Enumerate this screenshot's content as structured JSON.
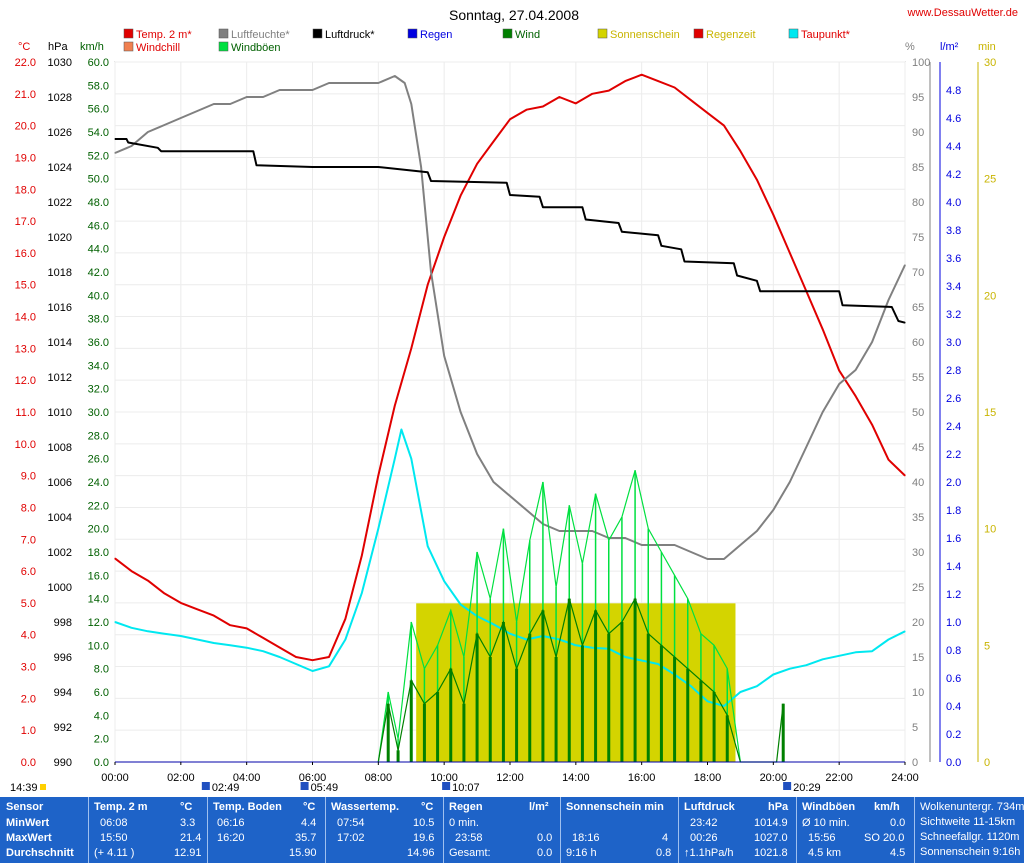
{
  "title": "Sonntag, 27.04.2008",
  "site": "www.DessauWetter.de",
  "legend": [
    {
      "label": "Temp. 2 m*",
      "color": "#e00000",
      "text_color": "#e00000"
    },
    {
      "label": "Windchill",
      "color": "#f08050",
      "text_color": "#e00000"
    },
    {
      "label": "Luftfeuchte*",
      "color": "#808080",
      "text_color": "#808080"
    },
    {
      "label": "Windböen",
      "color": "#00e040",
      "text_color": "#006000"
    },
    {
      "label": "Luftdruck*",
      "color": "#000000",
      "text_color": "#000000"
    },
    {
      "label": "Regen",
      "color": "#0000e0",
      "text_color": "#0000e0"
    },
    {
      "label": "Wind",
      "color": "#008000",
      "text_color": "#006000"
    },
    {
      "label": "Sonnenschein",
      "color": "#d4d400",
      "text_color": "#c8b400"
    },
    {
      "label": "Regenzeit",
      "color": "#e00000",
      "text_color": "#c8b400"
    },
    {
      "label": "Taupunkt*",
      "color": "#00e8f0",
      "text_color": "#e00000"
    }
  ],
  "axis_units": {
    "temp": "°C",
    "pressure": "hPa",
    "wind": "km/h",
    "humidity": "%",
    "rain": "l/m²",
    "sun": "min"
  },
  "chart_data": {
    "type": "line",
    "x_unit": "time of day (h)",
    "xlim": [
      0,
      24
    ],
    "x_tick_labels": [
      "00:00",
      "02:00",
      "04:00",
      "06:00",
      "08:00",
      "10:00",
      "12:00",
      "14:00",
      "16:00",
      "18:00",
      "20:00",
      "22:00",
      "24:00"
    ],
    "y_axes": {
      "temp": {
        "min": 0,
        "max": 22,
        "ticks": [
          "0.0",
          "1.0",
          "2.0",
          "3.0",
          "4.0",
          "5.0",
          "6.0",
          "7.0",
          "8.0",
          "9.0",
          "10.0",
          "11.0",
          "12.0",
          "13.0",
          "14.0",
          "15.0",
          "16.0",
          "17.0",
          "18.0",
          "19.0",
          "20.0",
          "21.0",
          "22.0"
        ]
      },
      "pressure": {
        "min": 990,
        "max": 1030,
        "ticks": [
          "990",
          "992",
          "994",
          "996",
          "998",
          "1000",
          "1002",
          "1004",
          "1006",
          "1008",
          "1010",
          "1012",
          "1014",
          "1016",
          "1018",
          "1020",
          "1022",
          "1024",
          "1026",
          "1028",
          "1030"
        ]
      },
      "wind": {
        "min": 0,
        "max": 60,
        "ticks": [
          "0.0",
          "2.0",
          "4.0",
          "6.0",
          "8.0",
          "10.0",
          "12.0",
          "14.0",
          "16.0",
          "18.0",
          "20.0",
          "22.0",
          "24.0",
          "26.0",
          "28.0",
          "30.0",
          "32.0",
          "34.0",
          "36.0",
          "38.0",
          "40.0",
          "42.0",
          "44.0",
          "46.0",
          "48.0",
          "50.0",
          "52.0",
          "54.0",
          "56.0",
          "58.0",
          "60.0"
        ]
      },
      "humidity": {
        "min": 0,
        "max": 100,
        "ticks": [
          "0",
          "5",
          "10",
          "15",
          "20",
          "25",
          "30",
          "35",
          "40",
          "45",
          "50",
          "55",
          "60",
          "65",
          "70",
          "75",
          "80",
          "85",
          "90",
          "95",
          "100"
        ]
      },
      "rain": {
        "min": 0,
        "max": 5,
        "ticks": [
          "0.0",
          "0.2",
          "0.4",
          "0.6",
          "0.8",
          "1.0",
          "1.2",
          "1.4",
          "1.6",
          "1.8",
          "2.0",
          "2.2",
          "2.4",
          "2.6",
          "2.8",
          "3.0",
          "3.2",
          "3.4",
          "3.6",
          "3.8",
          "4.0",
          "4.2",
          "4.4",
          "4.6",
          "4.8"
        ]
      },
      "sun": {
        "min": 0,
        "max": 30,
        "ticks": [
          "0",
          "5",
          "10",
          "15",
          "20",
          "25",
          "30"
        ]
      }
    },
    "series": [
      {
        "name": "Temp. 2 m*",
        "axis": "temp",
        "color": "#e00000",
        "x": [
          0,
          0.5,
          1,
          1.5,
          2,
          2.5,
          3,
          3.5,
          4,
          4.5,
          5,
          5.5,
          6,
          6.5,
          7,
          7.5,
          8,
          8.5,
          9,
          9.5,
          10,
          10.5,
          11,
          11.5,
          12,
          12.5,
          13,
          13.5,
          14,
          14.5,
          15,
          15.5,
          16,
          16.5,
          17,
          17.5,
          18,
          18.5,
          19,
          19.5,
          20,
          20.5,
          21,
          21.5,
          22,
          22.5,
          23,
          23.5,
          24
        ],
        "y": [
          6.4,
          6.0,
          5.7,
          5.3,
          5.0,
          4.8,
          4.6,
          4.3,
          4.2,
          3.9,
          3.6,
          3.3,
          3.2,
          3.3,
          4.5,
          6.5,
          9.0,
          11.2,
          13.0,
          15.0,
          16.5,
          17.8,
          18.8,
          19.5,
          20.2,
          20.5,
          20.6,
          20.9,
          20.7,
          21.0,
          21.1,
          21.4,
          21.6,
          21.4,
          21.2,
          20.8,
          20.4,
          20.0,
          19.2,
          18.3,
          17.2,
          16.0,
          14.8,
          13.6,
          12.3,
          11.5,
          10.6,
          9.5,
          9.0
        ]
      },
      {
        "name": "Luftfeuchte*",
        "axis": "humidity",
        "color": "#808080",
        "x": [
          0,
          0.5,
          1,
          1.5,
          2,
          2.5,
          3,
          3.5,
          4,
          4.5,
          5,
          5.5,
          6,
          6.5,
          7,
          7.5,
          8,
          8.5,
          8.8,
          9,
          9.3,
          9.6,
          10,
          10.5,
          11,
          11.5,
          12,
          12.5,
          13,
          13.5,
          14,
          14.5,
          15,
          15.5,
          16,
          16.5,
          17,
          17.5,
          18,
          18.5,
          19,
          19.5,
          20,
          20.5,
          21,
          21.5,
          22,
          22.5,
          23,
          23.5,
          24
        ],
        "y": [
          87,
          88,
          90,
          91,
          92,
          93,
          94,
          94,
          95,
          95,
          96,
          96,
          96,
          97,
          97,
          97,
          97,
          98,
          97,
          94,
          85,
          70,
          58,
          50,
          44,
          40,
          38,
          36,
          34,
          33,
          33,
          33,
          32,
          32,
          31,
          31,
          31,
          30,
          29,
          29,
          31,
          33,
          36,
          40,
          45,
          50,
          54,
          56,
          60,
          66,
          71
        ]
      },
      {
        "name": "Luftdruck*",
        "axis": "pressure",
        "color": "#000000",
        "x": [
          0,
          0.35,
          0.4,
          1.3,
          1.4,
          4.2,
          4.3,
          6,
          8,
          9.5,
          9.6,
          11.9,
          12.0,
          12.9,
          13.0,
          14.2,
          14.3,
          15.3,
          15.4,
          16.5,
          16.6,
          17.2,
          17.3,
          18.8,
          18.9,
          19.5,
          19.6,
          22.0,
          22.1,
          23.6,
          23.8,
          24
        ],
        "y": [
          1025.6,
          1025.6,
          1025.4,
          1025.1,
          1024.9,
          1024.9,
          1024.1,
          1024.0,
          1024.0,
          1023.7,
          1023.2,
          1023.1,
          1022.4,
          1022.3,
          1021.7,
          1021.7,
          1021.0,
          1020.8,
          1020.3,
          1020.1,
          1019.5,
          1019.3,
          1018.6,
          1018.5,
          1017.8,
          1017.5,
          1016.9,
          1016.9,
          1016.1,
          1016.0,
          1015.2,
          1015.1
        ]
      },
      {
        "name": "Taupunkt*",
        "axis": "wind",
        "color": "#00e8f0",
        "x": [
          0,
          0.5,
          1,
          1.5,
          2,
          2.5,
          3,
          3.5,
          4,
          4.5,
          5,
          5.5,
          6,
          6.5,
          7,
          7.5,
          8,
          8.5,
          8.7,
          9,
          9.5,
          10,
          10.5,
          11,
          11.5,
          12,
          12.5,
          13,
          13.5,
          14,
          14.5,
          15,
          15.5,
          16,
          16.5,
          17,
          17.5,
          18,
          18.5,
          19,
          19.5,
          20,
          20.5,
          21,
          21.5,
          22,
          22.5,
          23,
          23.5,
          24
        ],
        "y": [
          12,
          11.5,
          11.2,
          11,
          10.8,
          10.5,
          10.2,
          10.0,
          9.8,
          9.5,
          9.0,
          8.4,
          7.8,
          8.2,
          10.5,
          14.5,
          20.0,
          26.0,
          28.5,
          26.0,
          18.5,
          15.5,
          13.5,
          12.5,
          11.8,
          11.0,
          10.5,
          10.8,
          10.5,
          10.0,
          9.8,
          9.7,
          9.0,
          8.7,
          8.4,
          7.5,
          6.5,
          5.2,
          4.8,
          6.0,
          6.5,
          7.5,
          8.0,
          8.3,
          8.8,
          9.1,
          9.4,
          9.5,
          10.5,
          11.2
        ]
      },
      {
        "name": "Windböen",
        "axis": "wind",
        "color": "#00e040",
        "x": [
          8.0,
          8.3,
          8.6,
          9.0,
          9.4,
          9.8,
          10.2,
          10.6,
          11.0,
          11.4,
          11.8,
          12.2,
          12.6,
          13.0,
          13.4,
          13.8,
          14.2,
          14.6,
          15.0,
          15.4,
          15.8,
          16.2,
          16.6,
          17.0,
          17.4,
          17.8,
          18.2,
          18.6,
          19.0
        ],
        "y": [
          0,
          6,
          2,
          12,
          8,
          10,
          13,
          9,
          18,
          14,
          20,
          12,
          19,
          24,
          15,
          22,
          17,
          23,
          19,
          21,
          25,
          20,
          18,
          16,
          14,
          11,
          10,
          8,
          0
        ]
      },
      {
        "name": "Wind",
        "axis": "wind",
        "color": "#008000",
        "x": [
          8.0,
          8.3,
          8.6,
          9.0,
          9.4,
          9.8,
          10.2,
          10.6,
          11.0,
          11.4,
          11.8,
          12.2,
          12.6,
          13.0,
          13.4,
          13.8,
          14.2,
          14.6,
          15.0,
          15.4,
          15.8,
          16.2,
          16.6,
          17.0,
          17.4,
          17.8,
          18.2,
          18.6,
          19.0,
          20.1,
          20.3
        ],
        "y": [
          0,
          5,
          1,
          7,
          5,
          6,
          8,
          5,
          11,
          9,
          12,
          8,
          11,
          13,
          9,
          14,
          10,
          13,
          11,
          12,
          14,
          11,
          10,
          9,
          8,
          7,
          6,
          4,
          0,
          0,
          5
        ]
      }
    ],
    "sunshine_bars": {
      "axis": "sun",
      "color": "#d4d400",
      "start": 9.15,
      "end": 18.85,
      "value": 6.8
    }
  },
  "axis_marks": {
    "left_time": "14:39",
    "markers": [
      {
        "t": 2.82,
        "label": "02:49"
      },
      {
        "t": 5.82,
        "label": "05:49"
      },
      {
        "t": 10.12,
        "label": "10:07"
      },
      {
        "t": 20.48,
        "label": "20:29"
      }
    ]
  },
  "stats": {
    "row_labels": [
      "Sensor",
      "MinWert",
      "MaxWert",
      "Durchschnitt"
    ],
    "temp2m": {
      "head": "Temp. 2 m",
      "unit": "°C",
      "min_time": "06:08",
      "min_val": "3.3",
      "max_time": "15:50",
      "max_val": "21.4",
      "avg_note": "(+ 4.11 )",
      "avg_val": "12.91"
    },
    "boden": {
      "head": "Temp. Boden",
      "unit": "°C",
      "min_time": "06:16",
      "min_val": "4.4",
      "max_time": "16:20",
      "max_val": "35.7",
      "avg_val": "15.90"
    },
    "wasser": {
      "head": "Wassertemp.",
      "unit": "°C",
      "min_time": "07:54",
      "min_val": "10.5",
      "max_time": "17:02",
      "max_val": "19.6",
      "avg_val": "14.96"
    },
    "regen": {
      "head": "Regen",
      "unit": "l/m²",
      "r1_label": "0 min.",
      "r2_time": "23:58",
      "r2_val": "0.0",
      "r3_label": "Gesamt:",
      "r3_val": "0.0"
    },
    "sonne": {
      "head": "Sonnenschein min",
      "r2_time": "18:16",
      "r2_val": "4",
      "r3_label": "9:16 h",
      "r3_val": "0.8"
    },
    "druck": {
      "head": "Luftdruck",
      "unit": "hPa",
      "r1_time": "23:42",
      "r1_val": "1014.9",
      "r2_time": "00:26",
      "r2_val": "1027.0",
      "r3_label": "↑1.1hPa/h",
      "r3_val": "1021.8"
    },
    "boeen": {
      "head": "Windböen",
      "unit": "km/h",
      "r1_label": "Ø 10 min.",
      "r1_val": "0.0",
      "r2_time": "15:56",
      "r2_val": "SO 20.0",
      "r3_label": "4.5 km",
      "r3_val": "4.5"
    },
    "extra": {
      "r0": "Wolkenuntergr. 734m",
      "r1": "Sichtweite 11-15km",
      "r2": "Schneefallgr. 1120m",
      "r3": "Sonnenschein 9:16h"
    }
  }
}
